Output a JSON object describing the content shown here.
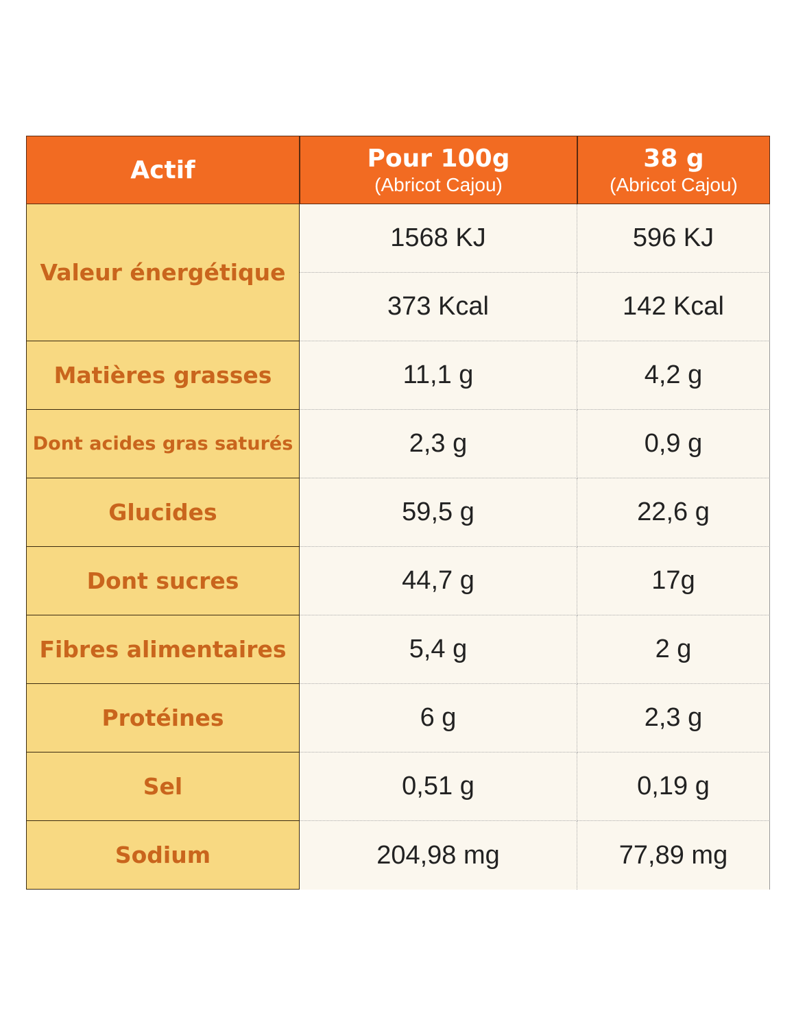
{
  "header": {
    "col1": "Actif",
    "col2_title": "Pour 100g",
    "col2_sub": "(Abricot Cajou)",
    "col3_title": "38 g",
    "col3_sub": "(Abricot Cajou)"
  },
  "rows": [
    {
      "label": "Valeur énergétique",
      "values": [
        [
          "1568 KJ",
          "596 KJ"
        ],
        [
          "373 Kcal",
          "142 Kcal"
        ]
      ]
    },
    {
      "label": "Matières grasses",
      "per100": "11,1 g",
      "per38": "4,2 g"
    },
    {
      "label": "Dont acides gras saturés",
      "per100": "2,3 g",
      "per38": "0,9 g"
    },
    {
      "label": "Glucides",
      "per100": "59,5 g",
      "per38": "22,6 g"
    },
    {
      "label": "Dont sucres",
      "per100": "44,7 g",
      "per38": "17g"
    },
    {
      "label": "Fibres alimentaires",
      "per100": "5,4 g",
      "per38": "2 g"
    },
    {
      "label": "Protéines",
      "per100": "6 g",
      "per38": "2,3 g"
    },
    {
      "label": "Sel",
      "per100": "0,51 g",
      "per38": "0,19 g"
    },
    {
      "label": "Sodium",
      "per100": "204,98 mg",
      "per38": "77,89 mg"
    }
  ],
  "colors": {
    "header": "#f26b22",
    "label_bg": "#f8d982",
    "label_text": "#c9651d",
    "value_bg": "#fbf7ee"
  }
}
